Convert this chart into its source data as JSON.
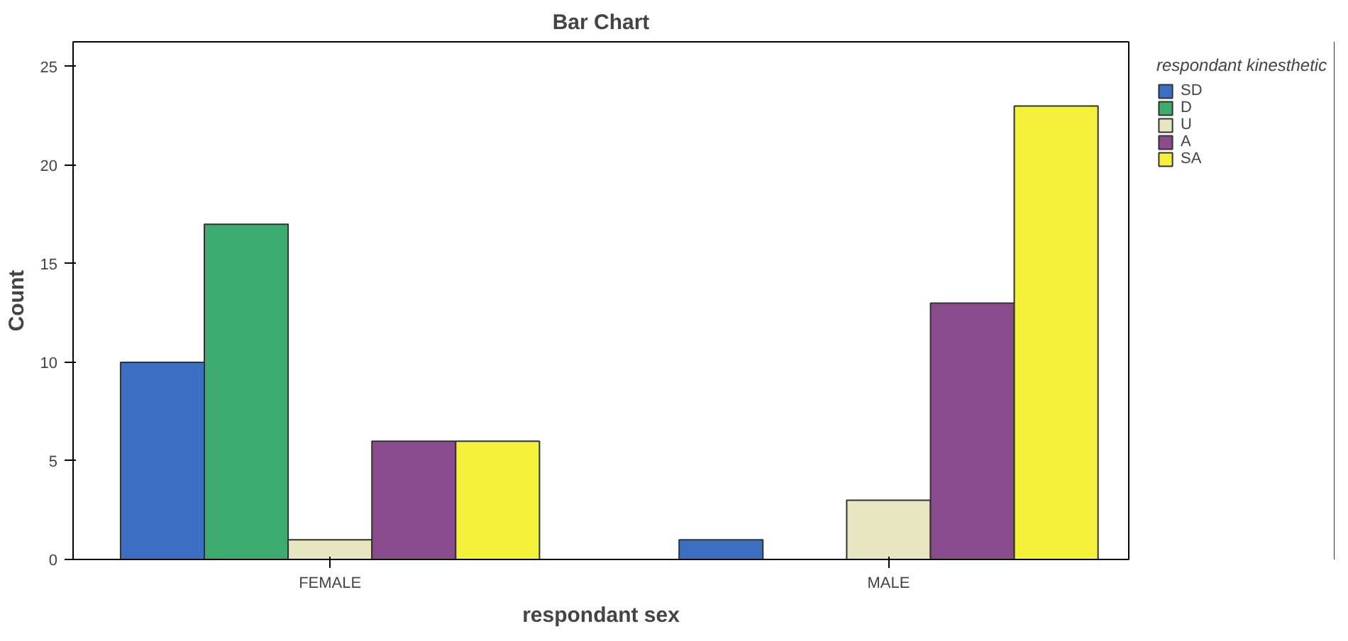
{
  "chart_data": {
    "type": "bar",
    "title": "Bar Chart",
    "xlabel": "respondant sex",
    "ylabel": "Count",
    "legend_title": "respondant kinesthetic",
    "categories": [
      "FEMALE",
      "MALE"
    ],
    "series": [
      {
        "name": "SD",
        "color": "#3c6fc4",
        "values": [
          10,
          1
        ]
      },
      {
        "name": "D",
        "color": "#3dab6e",
        "values": [
          17,
          0
        ]
      },
      {
        "name": "U",
        "color": "#e8e6c0",
        "values": [
          1,
          3
        ]
      },
      {
        "name": "A",
        "color": "#8b4a8c",
        "values": [
          6,
          13
        ]
      },
      {
        "name": "SA",
        "color": "#f5f03a",
        "values": [
          6,
          23
        ]
      }
    ],
    "ylim": [
      0,
      26.25
    ],
    "yticks": [
      0,
      5,
      10,
      15,
      20,
      25
    ],
    "grid": false,
    "legend": "right"
  }
}
